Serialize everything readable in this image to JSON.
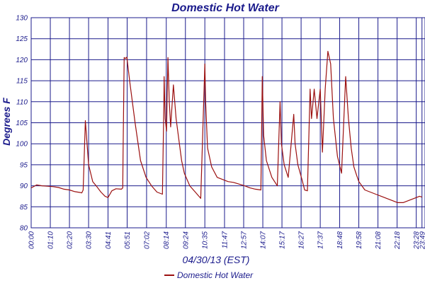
{
  "chart_data": {
    "type": "line",
    "title": "Domestic Hot Water",
    "xlabel": "04/30/13 (EST)",
    "ylabel": "Degrees F",
    "ylim": [
      80,
      130
    ],
    "yticks": [
      "80",
      "85",
      "90",
      "95",
      "100",
      "105",
      "110",
      "115",
      "120",
      "125",
      "130"
    ],
    "xlim_minutes": [
      0,
      1440
    ],
    "xticks": [
      "00:00",
      "01:10",
      "02:20",
      "03:30",
      "04:41",
      "05:51",
      "07:02",
      "08:14",
      "09:24",
      "10:35",
      "11:47",
      "12:57",
      "14:07",
      "15:17",
      "16:27",
      "17:37",
      "18:48",
      "19:58",
      "21:08",
      "22:18",
      "23:28",
      "23:49"
    ],
    "grid": true,
    "legend_placement": "bottom-center",
    "colors": {
      "series": "#9b1010",
      "grid": "#1b1b8c",
      "text": "#1b1b8c"
    },
    "series": [
      {
        "name": "Domestic Hot Water",
        "x": [
          "00:00",
          "00:20",
          "00:40",
          "01:00",
          "01:20",
          "01:40",
          "02:00",
          "02:20",
          "02:40",
          "03:00",
          "03:05",
          "03:10",
          "03:18",
          "03:30",
          "03:45",
          "04:00",
          "04:15",
          "04:30",
          "04:41",
          "04:55",
          "05:10",
          "05:30",
          "05:35",
          "05:36",
          "05:40",
          "05:45",
          "05:50",
          "06:00",
          "06:20",
          "06:40",
          "07:00",
          "07:20",
          "07:40",
          "08:00",
          "08:05",
          "08:06",
          "08:10",
          "08:15",
          "08:20",
          "08:25",
          "08:30",
          "08:40",
          "08:50",
          "09:00",
          "09:10",
          "09:20",
          "09:40",
          "10:00",
          "10:20",
          "10:35",
          "10:38",
          "10:45",
          "11:00",
          "11:20",
          "11:40",
          "12:00",
          "12:20",
          "12:40",
          "13:00",
          "13:20",
          "13:40",
          "14:00",
          "14:05",
          "14:10",
          "14:20",
          "14:40",
          "15:00",
          "15:10",
          "15:15",
          "15:25",
          "15:40",
          "16:00",
          "16:05",
          "16:15",
          "16:30",
          "16:40",
          "16:50",
          "17:00",
          "17:05",
          "17:15",
          "17:25",
          "17:37",
          "17:45",
          "17:55",
          "18:05",
          "18:15",
          "18:25",
          "18:40",
          "18:55",
          "19:10",
          "19:20",
          "19:30",
          "19:40",
          "19:50",
          "19:58",
          "20:20",
          "20:40",
          "21:00",
          "21:20",
          "21:40",
          "22:00",
          "22:20",
          "22:40",
          "23:00",
          "23:20",
          "23:40",
          "23:49"
        ],
        "values": [
          89.5,
          90.2,
          90.0,
          89.9,
          89.8,
          89.6,
          89.2,
          89.0,
          88.6,
          88.4,
          88.3,
          89.0,
          105.5,
          95.0,
          91.0,
          89.8,
          88.5,
          87.5,
          87.2,
          88.8,
          89.3,
          89.2,
          89.5,
          97.0,
          120.5,
          120.3,
          120.6,
          115.0,
          105.0,
          96.0,
          92.0,
          90.0,
          88.5,
          88.0,
          109.0,
          116.0,
          106.0,
          103.0,
          120.5,
          110.0,
          104.0,
          114.0,
          106.0,
          101.0,
          96.0,
          93.0,
          90.0,
          88.5,
          87.0,
          119.0,
          110.0,
          99.0,
          94.5,
          92.0,
          91.5,
          91.0,
          90.8,
          90.4,
          90.0,
          89.5,
          89.2,
          89.0,
          116.0,
          102.0,
          96.0,
          92.0,
          90.0,
          110.0,
          100.0,
          95.0,
          92.0,
          107.0,
          100.0,
          95.0,
          91.5,
          89.0,
          88.8,
          113.0,
          106.0,
          113.0,
          106.0,
          113.0,
          98.0,
          113.0,
          122.0,
          119.0,
          106.0,
          97.0,
          93.0,
          116.0,
          106.0,
          99.0,
          94.5,
          92.5,
          91.0,
          89.0,
          88.5,
          88.0,
          87.5,
          87.0,
          86.5,
          86.0,
          86.0,
          86.5,
          87.0,
          87.5,
          87.3
        ]
      }
    ]
  }
}
